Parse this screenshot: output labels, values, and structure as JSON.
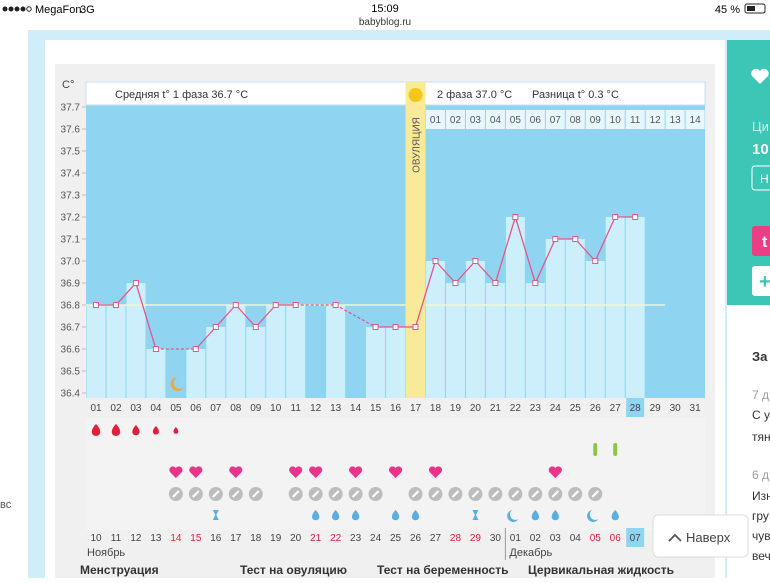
{
  "status_bar": {
    "carrier": "MegaFon",
    "network": "3G",
    "time": "15:09",
    "url": "babyblog.ru",
    "battery": "45 %"
  },
  "chart_data": {
    "type": "line",
    "y_unit": "C°",
    "phase1_label": "Средняя t° 1 фаза 36.7 °C",
    "phase2_label": "2 фаза 37.0 °C",
    "difference_label": "Разница t° 0.3 °C",
    "ovulation_label": "ОВУЛЯЦИЯ",
    "ovulation_day": "17",
    "highlight_day": "28",
    "categories": [
      "01",
      "02",
      "03",
      "04",
      "05",
      "06",
      "07",
      "08",
      "09",
      "10",
      "11",
      "12",
      "13",
      "14",
      "15",
      "16",
      "17",
      "18",
      "19",
      "20",
      "21",
      "22",
      "23",
      "24",
      "25",
      "26",
      "27",
      "28",
      "29",
      "30",
      "31"
    ],
    "values": [
      36.8,
      36.8,
      36.9,
      36.6,
      null,
      36.6,
      36.7,
      36.8,
      36.7,
      36.8,
      36.8,
      null,
      36.8,
      null,
      36.7,
      36.7,
      36.7,
      37.0,
      36.9,
      37.0,
      36.9,
      37.2,
      36.9,
      37.1,
      37.1,
      37.0,
      37.2,
      37.2,
      null,
      null,
      null
    ],
    "color": "#e4578a",
    "coverline": 36.8,
    "ylim": [
      36.4,
      37.7
    ],
    "yticks": [
      36.4,
      36.5,
      36.6,
      36.7,
      36.8,
      36.9,
      {
        "value": 37,
        "label": "37.0"
      },
      37.1,
      37.2,
      37.3,
      37.4,
      37.5,
      37.6,
      37.7
    ],
    "phase2_days": [
      "01",
      "02",
      "03",
      "04",
      "05",
      "06",
      "07",
      "08",
      "09",
      "10",
      "11",
      "12",
      "13",
      "14"
    ],
    "dates": [
      "10",
      "11",
      "12",
      "13",
      "14",
      "15",
      "16",
      "17",
      "18",
      "19",
      "20",
      "21",
      "22",
      "23",
      "24",
      "25",
      "26",
      "27",
      "28",
      "29",
      "30",
      "01",
      "02",
      "03",
      "04",
      "05",
      "06",
      "07"
    ],
    "red_dates": [
      4,
      5,
      11,
      12,
      18,
      19,
      25,
      26
    ],
    "months": [
      "Ноябрь",
      "Декабрь"
    ]
  },
  "legend_labels": [
    "Менструация",
    "Тест на овуляцию",
    "Тест на беременность",
    "Цервикальная жидкость"
  ],
  "scroll_button": "Наверх",
  "sidebar": {
    "top": [
      "Ци",
      "10",
      "Н",
      "t",
      "+"
    ],
    "bottom": [
      "За",
      "7 д",
      "С у",
      "тян",
      "6 д",
      "Изн",
      "гру",
      "чув",
      "веч"
    ]
  },
  "left_text": "вс"
}
